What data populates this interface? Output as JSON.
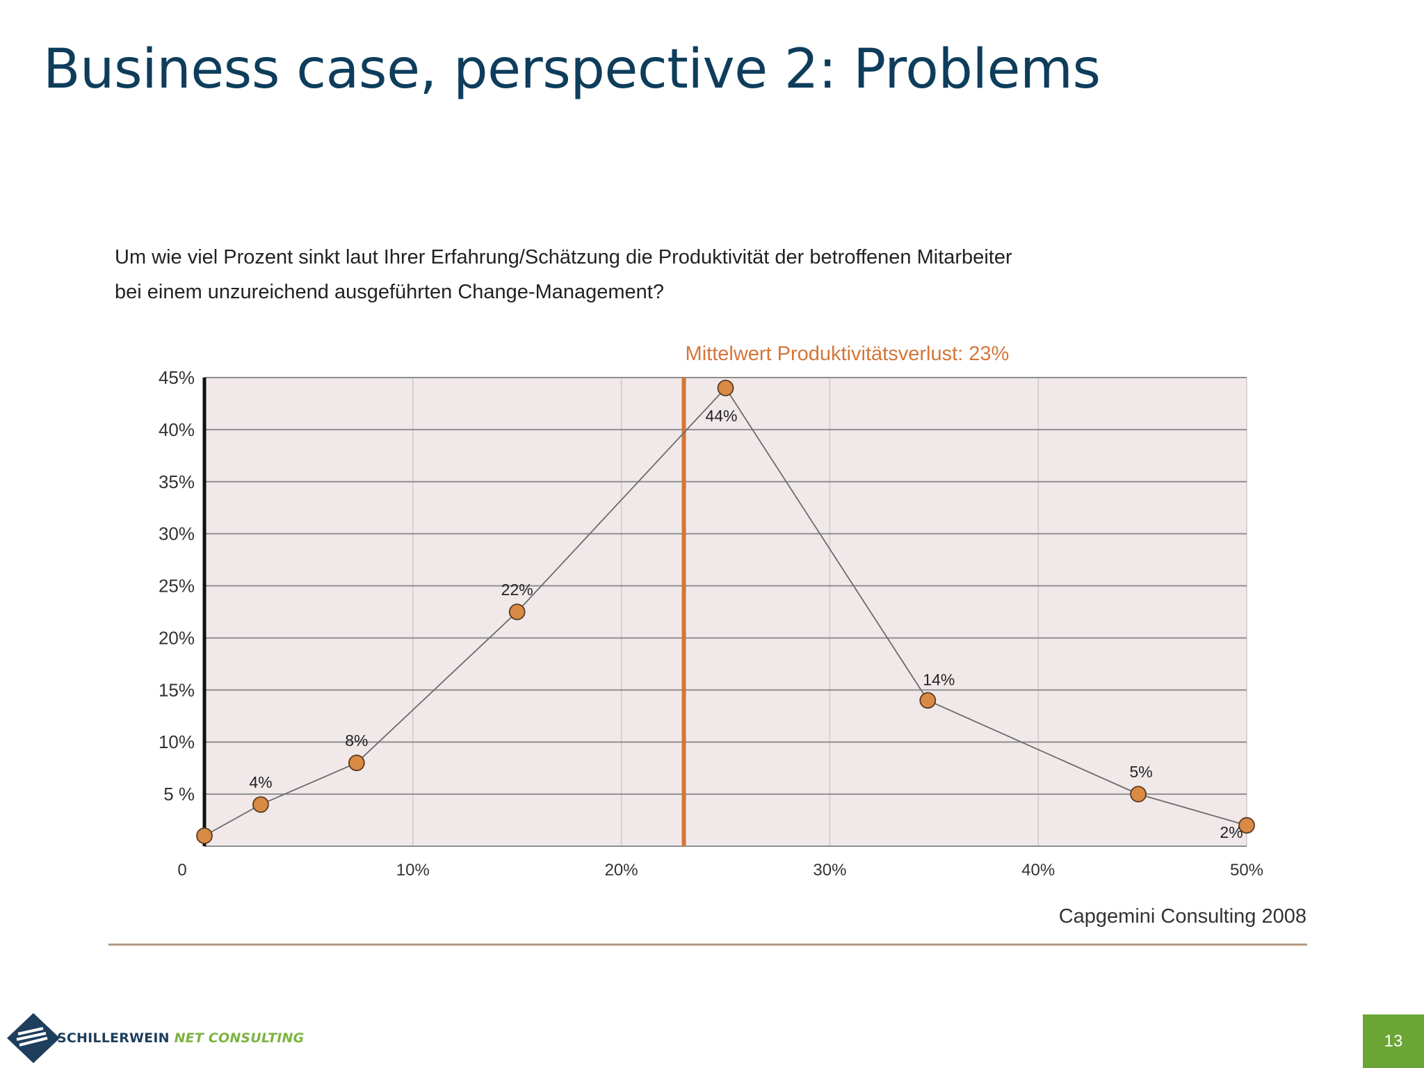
{
  "slide": {
    "title": "Business case, perspective 2: Problems",
    "question_line1": "Um wie viel Prozent sinkt laut Ihrer Erfahrung/Schätzung die Produktivität der betroffenen Mitarbeiter",
    "question_line2": "bei einem unzureichend ausgeführten Change-Management?",
    "source": "Capgemini Consulting 2008",
    "logo_text_part1": "SCHILLERWEIN",
    "logo_text_part2": "NET CONSULTING",
    "page_number": "13"
  },
  "colors": {
    "title": "#0e3d5c",
    "plot_background": "#f1e9e9",
    "accent_orange": "#d4763a",
    "marker_fill": "#d98a45",
    "line": "#6b6b6b",
    "page_badge": "#6aa535"
  },
  "chart_data": {
    "type": "line",
    "title": "",
    "xlabel": "",
    "ylabel": "",
    "xlim": [
      0,
      50
    ],
    "ylim": [
      0,
      45
    ],
    "grid": true,
    "x_ticks": [
      0,
      10,
      20,
      30,
      40,
      50
    ],
    "x_tick_labels": [
      "0",
      "10%",
      "20%",
      "30%",
      "40%",
      "50%"
    ],
    "y_ticks": [
      5,
      10,
      15,
      20,
      25,
      30,
      35,
      40,
      45
    ],
    "y_tick_labels": [
      "5 %",
      "10%",
      "15%",
      "20%",
      "25%",
      "30%",
      "35%",
      "40%",
      "45%"
    ],
    "series": [
      {
        "points": [
          {
            "x": 0,
            "y": 1,
            "label": ""
          },
          {
            "x": 2.7,
            "y": 4,
            "label": "4%"
          },
          {
            "x": 7.3,
            "y": 8,
            "label": "8%"
          },
          {
            "x": 15,
            "y": 22.5,
            "label": "22%"
          },
          {
            "x": 25,
            "y": 44,
            "label": "44%"
          },
          {
            "x": 34.7,
            "y": 14,
            "label": "14%"
          },
          {
            "x": 44.8,
            "y": 5,
            "label": "5%"
          },
          {
            "x": 50,
            "y": 2,
            "label": "2%"
          }
        ]
      }
    ],
    "mean_line": {
      "x": 23,
      "label": "Mittelwert Produktivitätsverlust: 23%"
    }
  }
}
